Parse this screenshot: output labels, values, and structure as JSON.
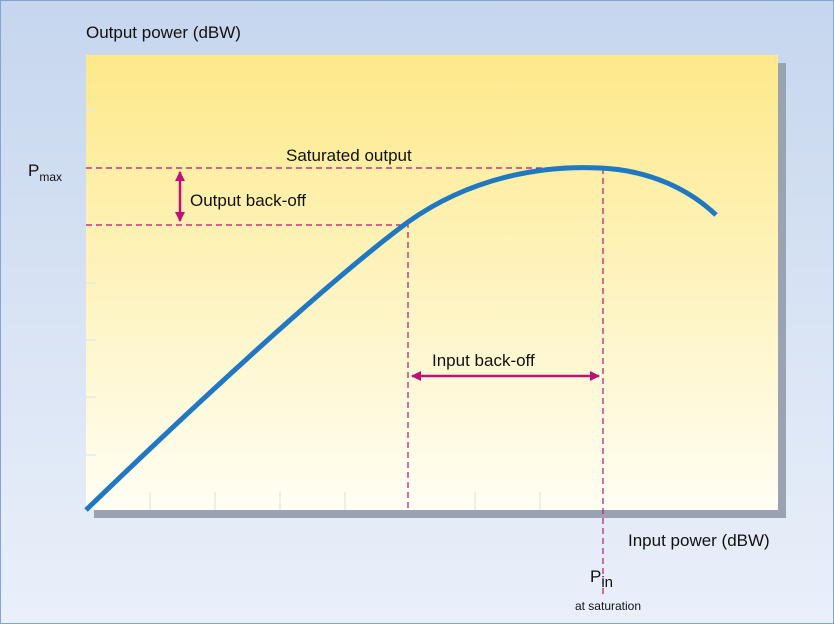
{
  "diagram": {
    "y_axis_label": "Output power (dBW)",
    "x_axis_label": "Input power (dBW)",
    "p_max": {
      "symbol": "P",
      "subscript": "max"
    },
    "saturated_output": "Saturated output",
    "output_back_off": "Output back-off",
    "input_back_off": "Input back-off",
    "p_in": {
      "symbol": "P",
      "subscript": "in",
      "note": "at saturation"
    }
  }
}
